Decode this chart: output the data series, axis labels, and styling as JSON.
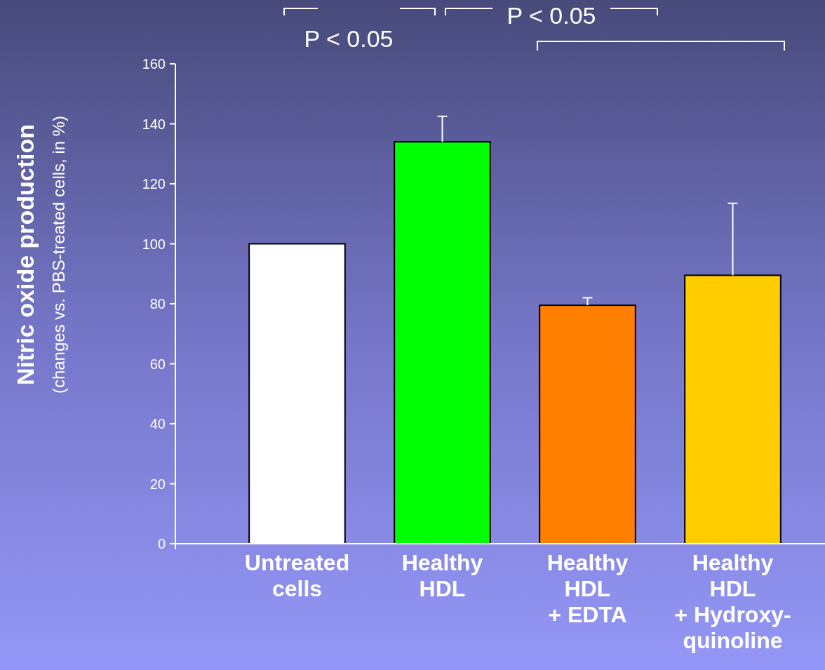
{
  "chart_data": {
    "type": "bar",
    "categories": [
      "Untreated\ncells",
      "Healthy\nHDL",
      "Healthy\nHDL\n+ EDTA",
      "Healthy\nHDL\n+ Hydroxy-\nquinoline"
    ],
    "values": [
      100,
      134,
      79.5,
      89.5
    ],
    "colors": [
      "#ffffff",
      "#00ff00",
      "#ff8000",
      "#ffcc00"
    ],
    "errors": [
      null,
      [
        134,
        142.5
      ],
      [
        79.5,
        82
      ],
      [
        89.5,
        113.5
      ]
    ],
    "ylabel": "Nitric oxide production\n(changes vs. PBS-treated cells, in %)",
    "ylim": [
      0,
      160
    ],
    "yticks": [
      0,
      20,
      40,
      60,
      80,
      100,
      120,
      140,
      160
    ],
    "annotations": [
      "P < 0.05",
      "P < 0.05"
    ],
    "grid": false
  }
}
